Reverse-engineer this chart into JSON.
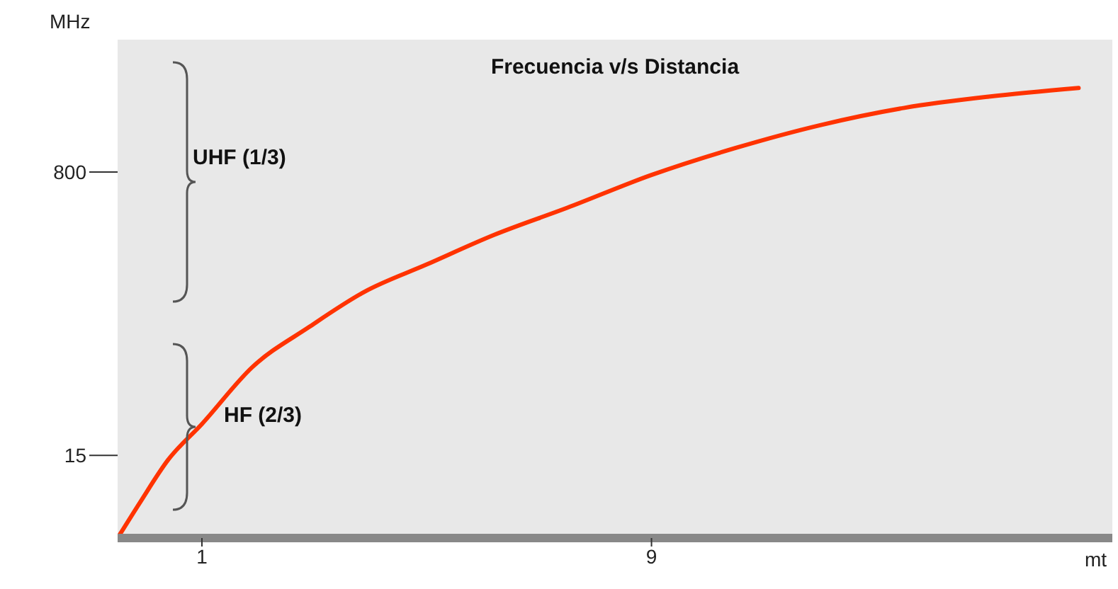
{
  "chart_data": {
    "type": "line",
    "title": "Frecuencia v/s Distancia",
    "xlabel": "mt",
    "ylabel": "MHz",
    "annotations": [
      "UHF (1/3)",
      "HF (2/3)"
    ],
    "x": [
      -0.5,
      -0.1,
      0.4,
      1,
      1.9,
      2.9,
      3.9,
      5,
      6.2,
      7.5,
      9,
      10.5,
      12,
      13.5,
      15,
      16.6
    ],
    "series": [
      {
        "color": "#ff3300",
        "values": [
          -214,
          -115,
          3,
          102,
          260,
          370,
          469,
          544,
          626,
          701,
          792,
          867,
          930,
          978,
          1009,
          1033
        ]
      }
    ],
    "xlim": [
      -0.5,
      17.2
    ],
    "xticks": [
      1,
      9
    ],
    "ylim": [
      -214,
      1167
    ],
    "yticks": [
      15,
      800
    ],
    "grid": false,
    "legend": false,
    "marker": "none",
    "line_style": "solid"
  }
}
